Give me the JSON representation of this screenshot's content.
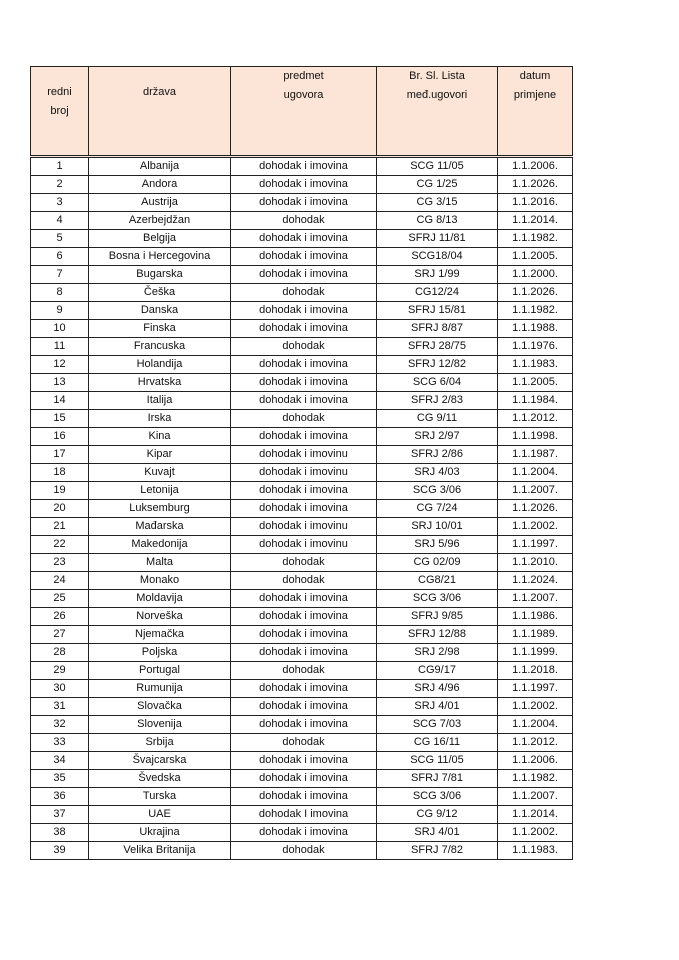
{
  "table": {
    "header": [
      [
        "redni",
        "broj"
      ],
      [
        "država"
      ],
      [
        "predmet",
        "ugovora"
      ],
      [
        "Br. Sl. Lista",
        "međ.ugovori"
      ],
      [
        "datum",
        "primjene"
      ]
    ],
    "rows": [
      [
        "1",
        "Albanija",
        "dohodak i imovina",
        "SCG 11/05",
        "1.1.2006."
      ],
      [
        "2",
        "Andora",
        "dohodak i imovina",
        "CG 1/25",
        "1.1.2026."
      ],
      [
        "3",
        "Austrija",
        "dohodak i imovina",
        "CG 3/15",
        "1.1.2016."
      ],
      [
        "4",
        "Azerbejdžan",
        "dohodak",
        "CG 8/13",
        "1.1.2014."
      ],
      [
        "5",
        "Belgija",
        "dohodak i imovina",
        "SFRJ 11/81",
        "1.1.1982."
      ],
      [
        "6",
        "Bosna i Hercegovina",
        "dohodak i imovina",
        "SCG18/04",
        "1.1.2005."
      ],
      [
        "7",
        "Bugarska",
        "dohodak i imovina",
        "SRJ 1/99",
        "1.1.2000."
      ],
      [
        "8",
        "Češka",
        "dohodak",
        "CG12/24",
        "1.1.2026."
      ],
      [
        "9",
        "Danska",
        "dohodak i imovina",
        "SFRJ 15/81",
        "1.1.1982."
      ],
      [
        "10",
        "Finska",
        "dohodak i imovina",
        "SFRJ 8/87",
        "1.1.1988."
      ],
      [
        "11",
        "Francuska",
        "dohodak",
        "SFRJ 28/75",
        "1.1.1976."
      ],
      [
        "12",
        "Holandija",
        "dohodak i imovina",
        "SFRJ 12/82",
        "1.1.1983."
      ],
      [
        "13",
        "Hrvatska",
        "dohodak i imovina",
        "SCG 6/04",
        "1.1.2005."
      ],
      [
        "14",
        "Italija",
        "dohodak i imovina",
        "SFRJ 2/83",
        "1.1.1984."
      ],
      [
        "15",
        "Irska",
        "dohodak",
        "CG 9/11",
        "1.1.2012."
      ],
      [
        "16",
        "Kina",
        "dohodak i imovina",
        "SRJ 2/97",
        "1.1.1998."
      ],
      [
        "17",
        "Kipar",
        "dohodak i imovinu",
        "SFRJ 2/86",
        "1.1.1987."
      ],
      [
        "18",
        "Kuvajt",
        "dohodak i imovinu",
        "SRJ 4/03",
        "1.1.2004."
      ],
      [
        "19",
        "Letonija",
        "dohodak i imovina",
        "SCG 3/06",
        "1.1.2007."
      ],
      [
        "20",
        "Luksemburg",
        "dohodak i imovina",
        "CG 7/24",
        "1.1.2026."
      ],
      [
        "21",
        "Mađarska",
        "dohodak i imovinu",
        "SRJ 10/01",
        "1.1.2002."
      ],
      [
        "22",
        "Makedonija",
        "dohodak i imovinu",
        "SRJ 5/96",
        "1.1.1997."
      ],
      [
        "23",
        "Malta",
        "dohodak",
        "CG 02/09",
        "1.1.2010."
      ],
      [
        "24",
        "Monako",
        "dohodak",
        "CG8/21",
        "1.1.2024."
      ],
      [
        "25",
        "Moldavija",
        "dohodak i imovina",
        "SCG 3/06",
        "1.1.2007."
      ],
      [
        "26",
        "Norveška",
        "dohodak i imovina",
        "SFRJ 9/85",
        "1.1.1986."
      ],
      [
        "27",
        "Njemačka",
        "dohodak i imovina",
        "SFRJ 12/88",
        "1.1.1989."
      ],
      [
        "28",
        "Poljska",
        "dohodak i imovina",
        "SRJ 2/98",
        "1.1.1999."
      ],
      [
        "29",
        "Portugal",
        "dohodak",
        "CG9/17",
        "1.1.2018."
      ],
      [
        "30",
        "Rumunija",
        "dohodak i imovina",
        "SRJ 4/96",
        "1.1.1997."
      ],
      [
        "31",
        "Slovačka",
        "dohodak i imovina",
        "SRJ 4/01",
        "1.1.2002."
      ],
      [
        "32",
        "Slovenija",
        "dohodak i imovina",
        "SCG 7/03",
        "1.1.2004."
      ],
      [
        "33",
        "Srbija",
        "dohodak",
        "CG 16/11",
        "1.1.2012."
      ],
      [
        "34",
        "Švajcarska",
        "dohodak i imovina",
        "SCG 11/05",
        "1.1.2006."
      ],
      [
        "35",
        "Švedska",
        "dohodak i imovina",
        "SFRJ 7/81",
        "1.1.1982."
      ],
      [
        "36",
        "Turska",
        "dohodak i imovina",
        "SCG 3/06",
        "1.1.2007."
      ],
      [
        "37",
        "UAE",
        "dohodak I imovina",
        "CG 9/12",
        "1.1.2014."
      ],
      [
        "38",
        "Ukrajina",
        "dohodak i imovina",
        "SRJ 4/01",
        "1.1.2002."
      ],
      [
        "39",
        "Velika Britanija",
        "dohodak",
        "SFRJ 7/82",
        "1.1.1983."
      ]
    ]
  }
}
